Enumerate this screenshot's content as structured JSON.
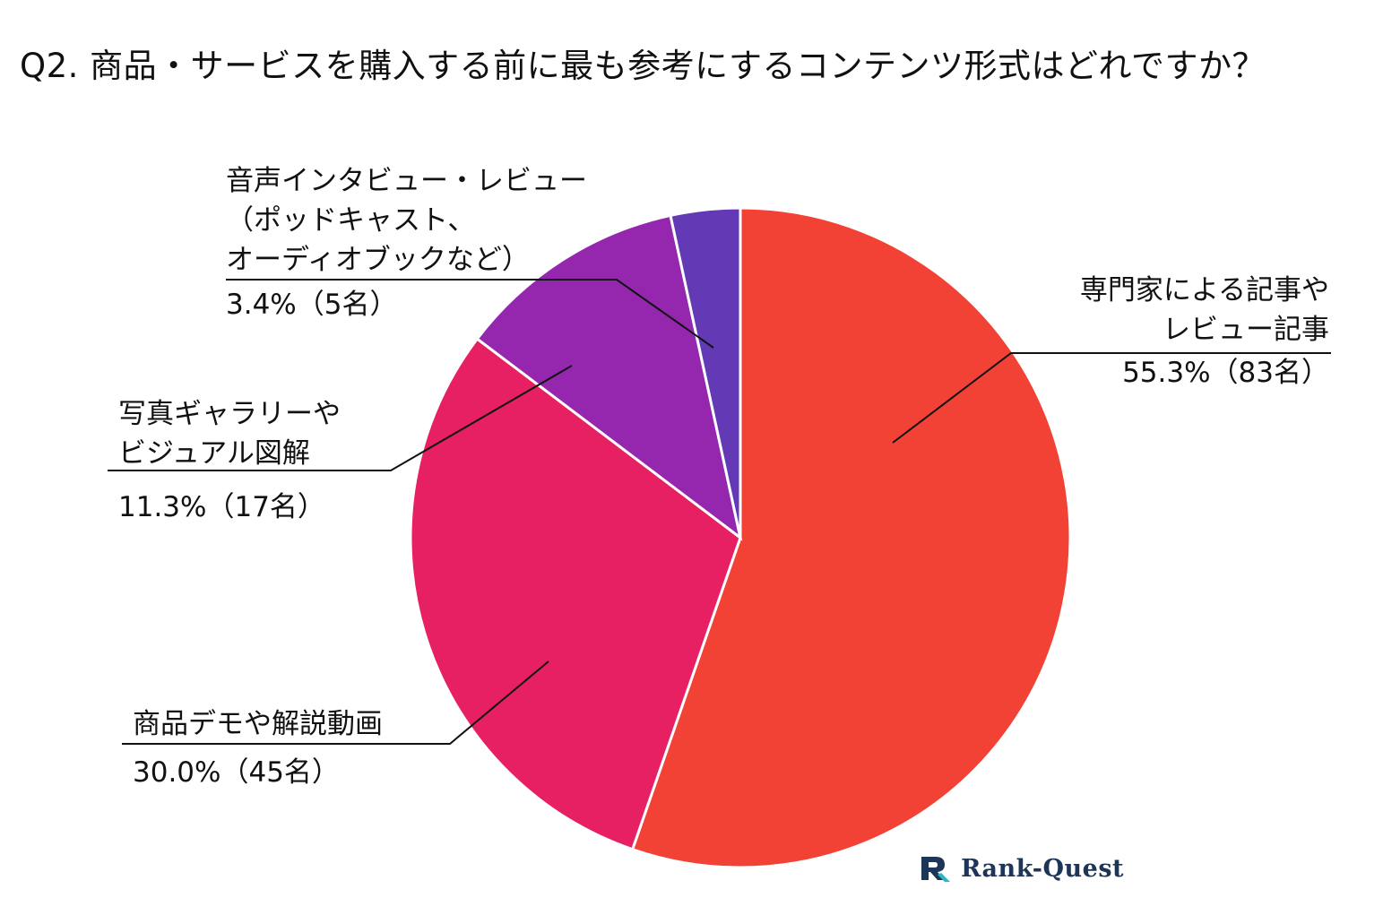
{
  "title": "Q2. 商品・サービスを購入する前に最も参考にするコンテンツ形式はどれですか？",
  "logo": {
    "text": "Rank-Quest"
  },
  "chart_data": {
    "type": "pie",
    "title": "Q2. 商品・サービスを購入する前に最も参考にするコンテンツ形式はどれですか？",
    "start": "12 o'clock, clockwise",
    "slices": [
      {
        "name": "専門家による記事やレビュー記事",
        "label_lines": [
          "専門家による記事や",
          "レビュー記事"
        ],
        "value_label": "55.3%（83名）",
        "percent": 55.3,
        "count": 83,
        "color": "#F24236"
      },
      {
        "name": "商品デモや解説動画",
        "label_lines": [
          "商品デモや解説動画"
        ],
        "value_label": "30.0%（45名）",
        "percent": 30.0,
        "count": 45,
        "color": "#E71F63"
      },
      {
        "name": "写真ギャラリーやビジュアル図解",
        "label_lines": [
          "写真ギャラリーや",
          "ビジュアル図解"
        ],
        "value_label": "11.3%（17名）",
        "percent": 11.3,
        "count": 17,
        "color": "#9527AF"
      },
      {
        "name": "音声インタビュー・レビュー（ポッドキャスト、オーディオブックなど）",
        "label_lines": [
          "音声インタビュー・レビュー",
          "（ポッドキャスト、",
          "オーディオブックなど）"
        ],
        "value_label": "3.4%（5名）",
        "percent": 3.4,
        "count": 5,
        "color": "#6439B6"
      }
    ]
  }
}
